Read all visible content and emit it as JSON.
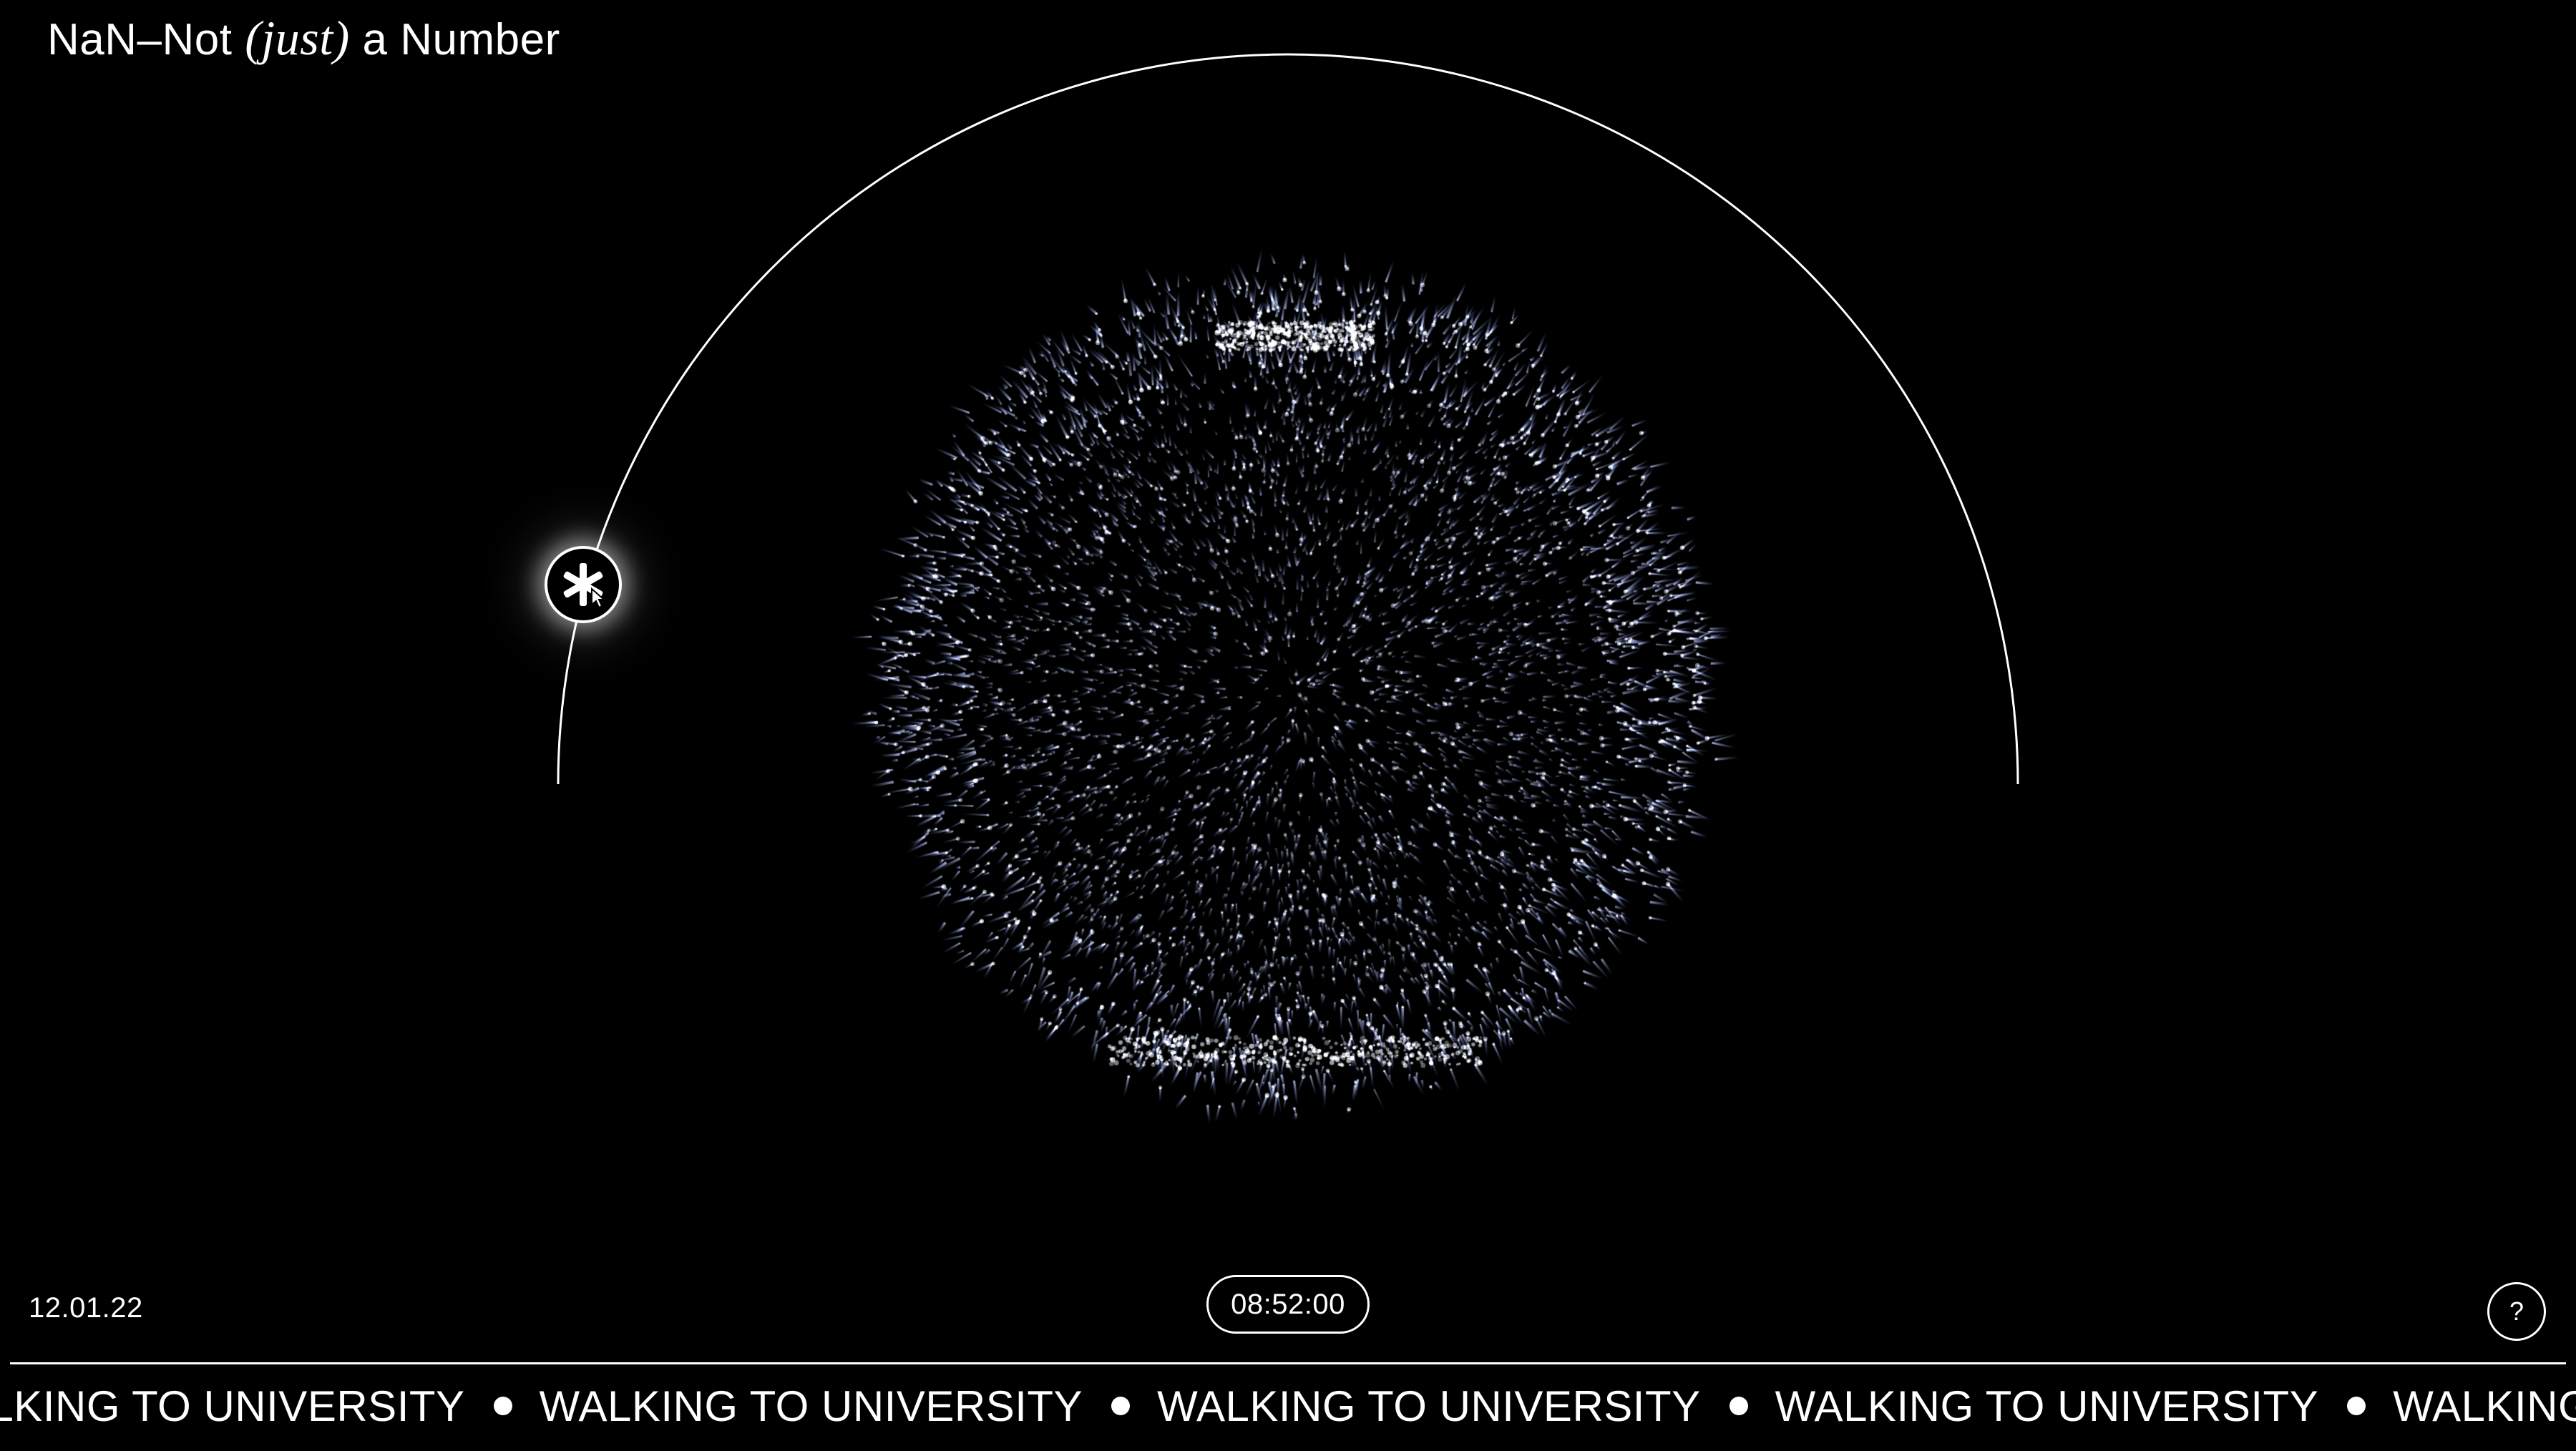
{
  "header": {
    "title_prefix": "NaN–Not ",
    "title_italic": "(just)",
    "title_suffix": " a Number"
  },
  "timeline": {
    "knob_icon": "asterisk-icon",
    "cursor_icon": "pointer-cursor-icon"
  },
  "footer": {
    "date": "12.01.22",
    "time": "08:52:00",
    "help_label": "?"
  },
  "activity": {
    "label": "WALKING TO UNIVERSITY",
    "repeat_items": [
      "WALKING TO UNIVERSITY",
      "WALKING TO UNIVERSITY",
      "WALKING TO UNIVERSITY",
      "WALKING TO UNIVERSITY",
      "WALKING TO UNIVERSITY"
    ]
  },
  "colors": {
    "background": "#000000",
    "foreground": "#ffffff",
    "particle": "#b9c7ff",
    "particle_glow": "#5f6fb8"
  }
}
